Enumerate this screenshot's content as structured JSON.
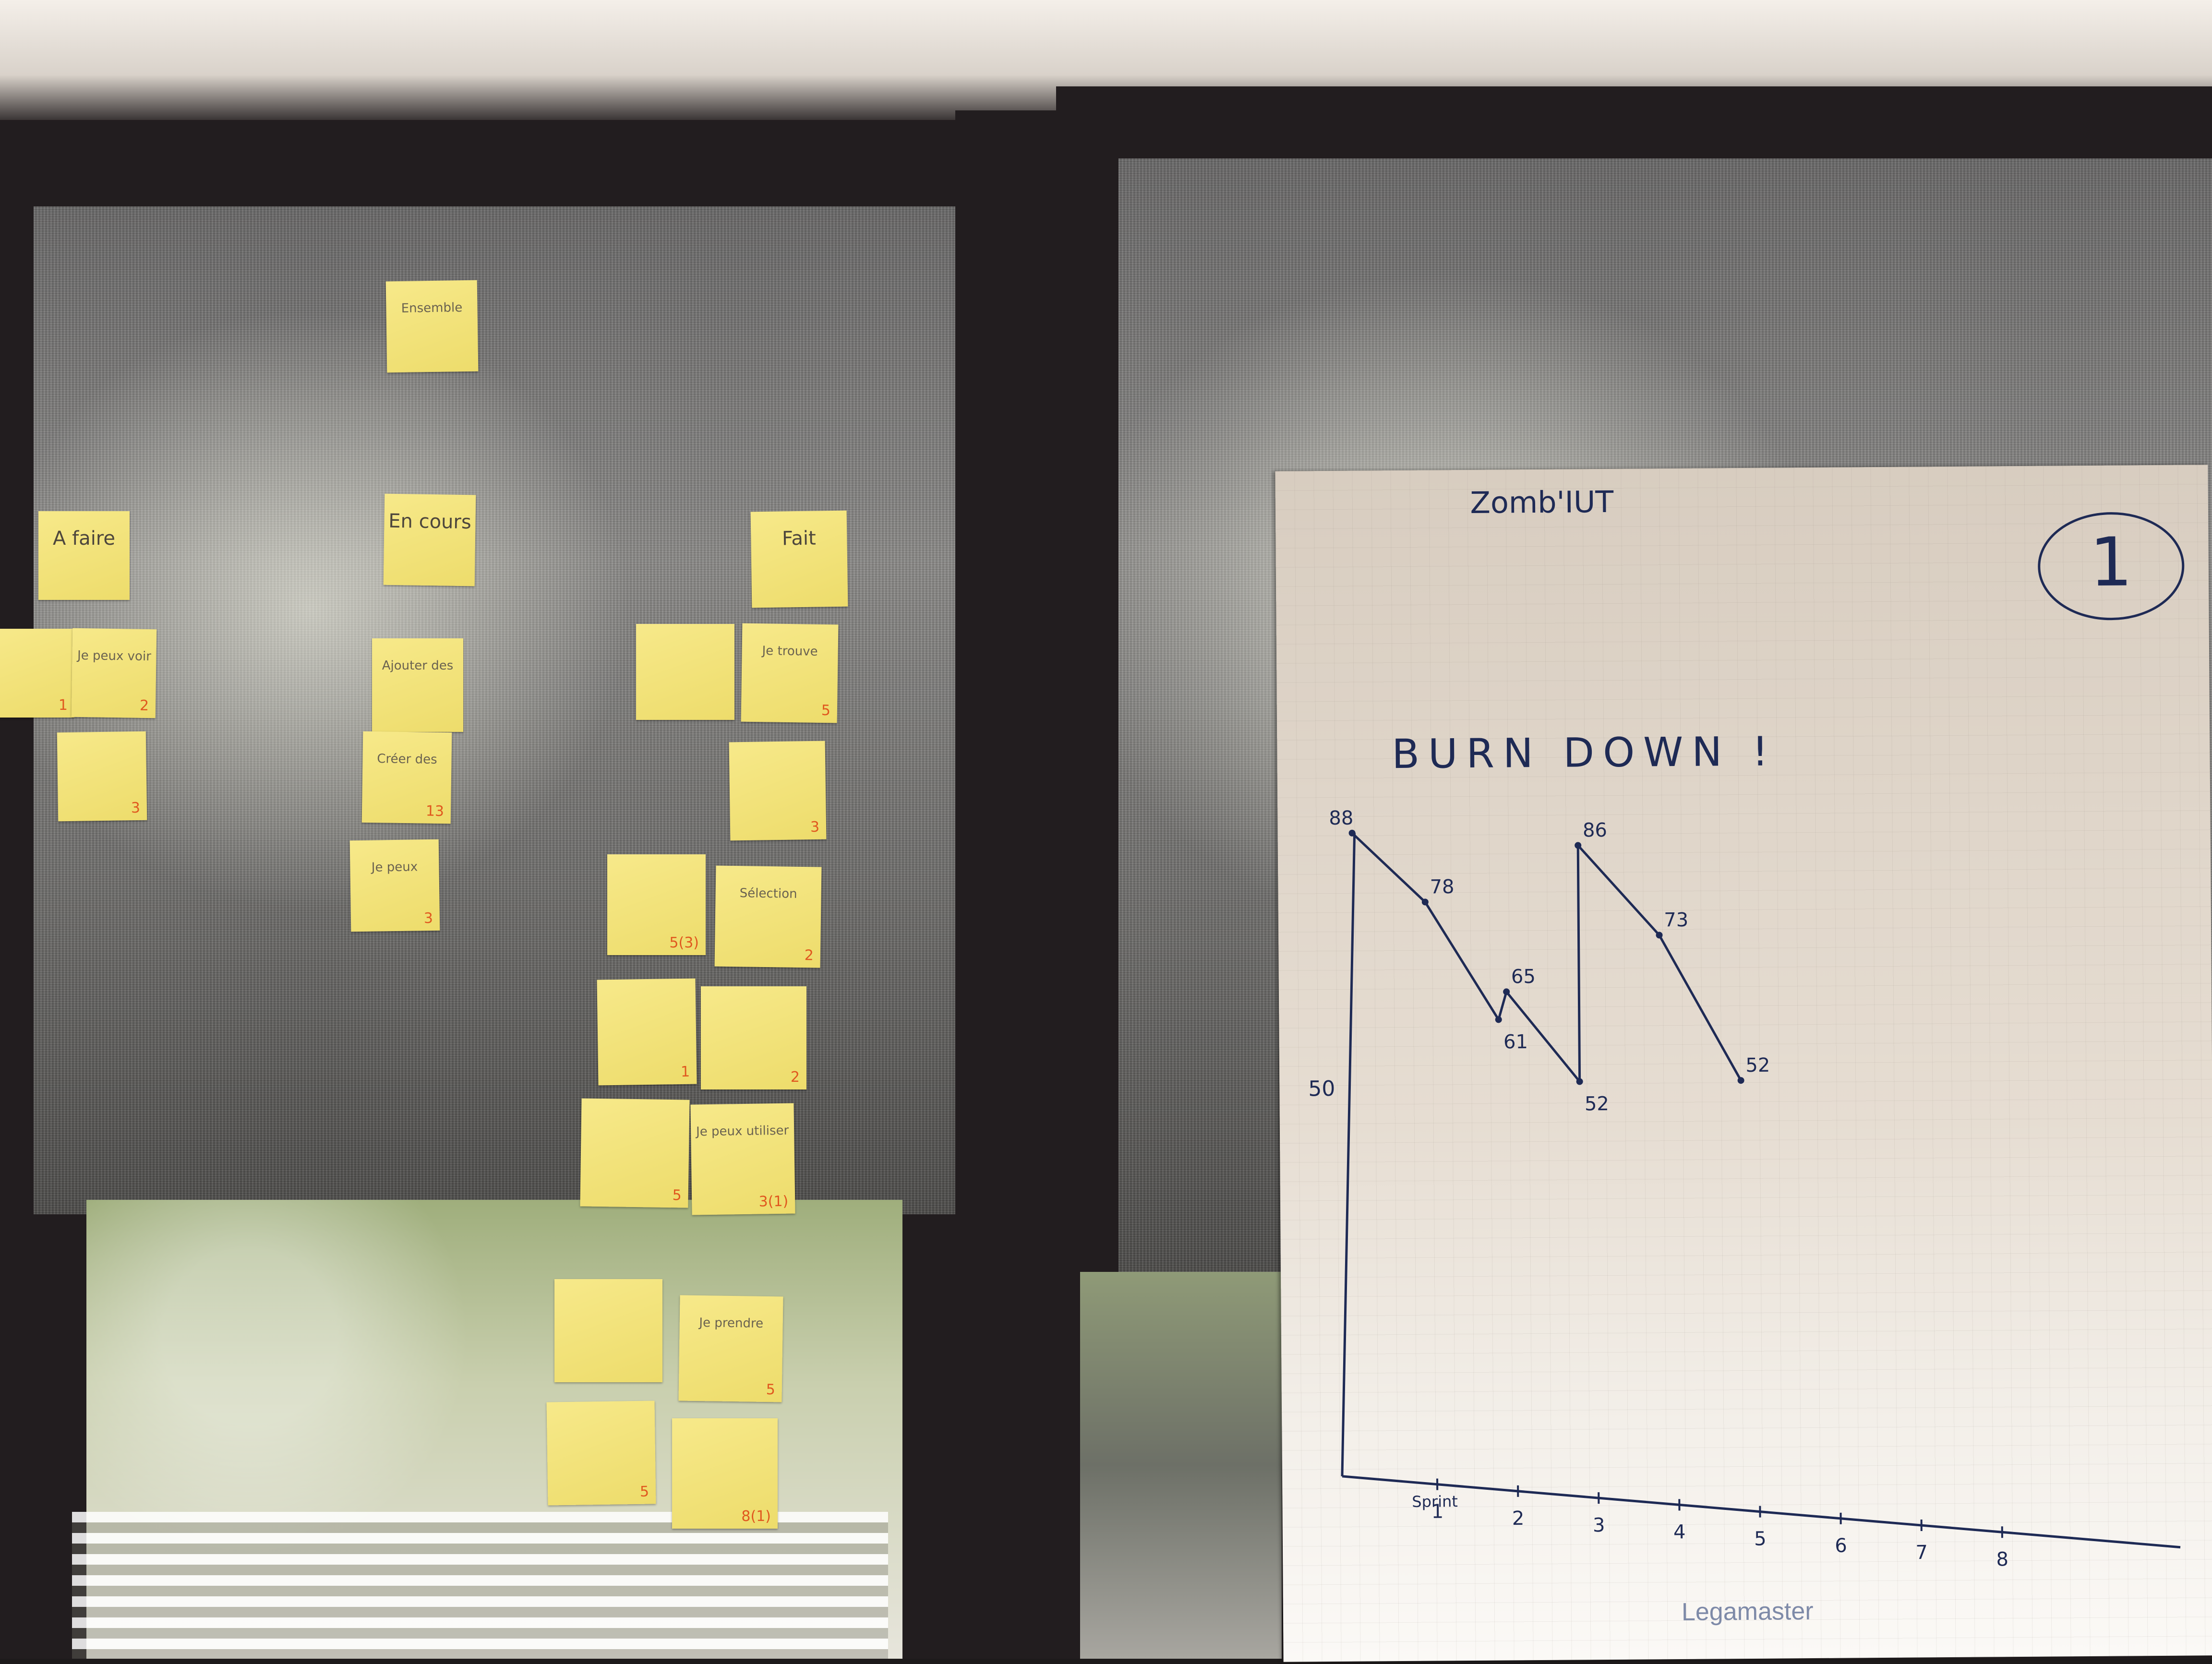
{
  "board_notes": [
    {
      "text": "Ensemble",
      "points": "",
      "big": false
    },
    {
      "text": "A faire",
      "points": "",
      "big": true
    },
    {
      "text": "En cours",
      "points": "",
      "big": true
    },
    {
      "text": "Fait",
      "points": "",
      "big": true
    },
    {
      "text": "",
      "points": "1",
      "big": false
    },
    {
      "text": "Je peux voir",
      "points": "2",
      "big": false
    },
    {
      "text": "",
      "points": "3",
      "big": false
    },
    {
      "text": "Ajouter des",
      "points": "",
      "big": false
    },
    {
      "text": "Créer des",
      "points": "13",
      "big": false
    },
    {
      "text": "Je peux",
      "points": "3",
      "big": false
    },
    {
      "text": "",
      "points": "",
      "big": false
    },
    {
      "text": "Je trouve",
      "points": "5",
      "big": false
    },
    {
      "text": "",
      "points": "3",
      "big": false
    },
    {
      "text": "",
      "points": "5(3)",
      "big": false
    },
    {
      "text": "Sélection",
      "points": "2",
      "big": false
    },
    {
      "text": "",
      "points": "1",
      "big": false
    },
    {
      "text": "",
      "points": "2",
      "big": false
    },
    {
      "text": "",
      "points": "5",
      "big": false
    },
    {
      "text": "Je peux utiliser",
      "points": "3(1)",
      "big": false
    },
    {
      "text": "",
      "points": "",
      "big": false
    },
    {
      "text": "Je prendre",
      "points": "5",
      "big": false
    },
    {
      "text": "",
      "points": "5",
      "big": false
    },
    {
      "text": "",
      "points": "8(1)",
      "big": false
    }
  ],
  "flipchart": {
    "project": "Zomb'IUT",
    "number": "1",
    "heading": "BURN DOWN !",
    "ytick": "50",
    "xaxis_first": "Sprint",
    "brand": "Legamaster"
  },
  "chart_data": {
    "type": "line",
    "title": "BURN DOWN !",
    "x_ticks": [
      "1",
      "2",
      "3",
      "4",
      "5",
      "6",
      "7",
      "8"
    ],
    "series": [
      {
        "name": "",
        "points": [
          {
            "x": 0.0,
            "y": 88,
            "label": "88"
          },
          {
            "x": 0.9,
            "y": 78,
            "label": "78"
          },
          {
            "x": 1.8,
            "y": 61,
            "label": "61"
          },
          {
            "x": 1.9,
            "y": 65,
            "label": "65"
          },
          {
            "x": 2.8,
            "y": 52,
            "label": "52"
          },
          {
            "x": 2.8,
            "y": 86,
            "label": "86"
          },
          {
            "x": 3.8,
            "y": 73,
            "label": "73"
          },
          {
            "x": 4.8,
            "y": 52,
            "label": "52"
          }
        ]
      }
    ],
    "y_tick_labels": [
      "50"
    ],
    "grid": true
  }
}
